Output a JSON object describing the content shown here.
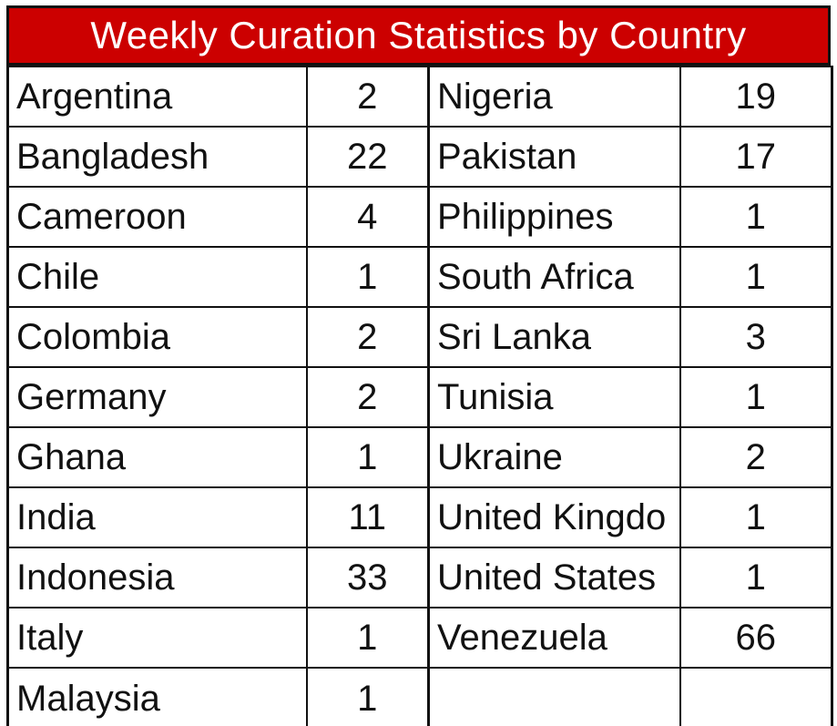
{
  "title": "Weekly Curation Statistics by Country",
  "rows": [
    {
      "left": {
        "country": "Argentina",
        "count": "2"
      },
      "right": {
        "country": "Nigeria",
        "count": "19"
      }
    },
    {
      "left": {
        "country": "Bangladesh",
        "count": "22"
      },
      "right": {
        "country": "Pakistan",
        "count": "17"
      }
    },
    {
      "left": {
        "country": "Cameroon",
        "count": "4"
      },
      "right": {
        "country": "Philippines",
        "count": "1"
      }
    },
    {
      "left": {
        "country": "Chile",
        "count": "1"
      },
      "right": {
        "country": "South Africa",
        "count": "1"
      }
    },
    {
      "left": {
        "country": "Colombia",
        "count": "2"
      },
      "right": {
        "country": "Sri Lanka",
        "count": "3"
      }
    },
    {
      "left": {
        "country": "Germany",
        "count": "2"
      },
      "right": {
        "country": "Tunisia",
        "count": "1"
      }
    },
    {
      "left": {
        "country": "Ghana",
        "count": "1"
      },
      "right": {
        "country": "Ukraine",
        "count": "2"
      }
    },
    {
      "left": {
        "country": "India",
        "count": "11"
      },
      "right": {
        "country": "United Kingdo",
        "count": "1"
      }
    },
    {
      "left": {
        "country": "Indonesia",
        "count": "33"
      },
      "right": {
        "country": "United States",
        "count": "1"
      }
    },
    {
      "left": {
        "country": "Italy",
        "count": "1"
      },
      "right": {
        "country": "Venezuela",
        "count": "66"
      }
    },
    {
      "left": {
        "country": "Malaysia",
        "count": "1"
      },
      "right": {
        "country": "",
        "count": ""
      }
    }
  ],
  "colors": {
    "header_background": "#cc0000",
    "header_text": "#ffffff",
    "grid_line": "#111111",
    "cell_text": "#111111"
  }
}
